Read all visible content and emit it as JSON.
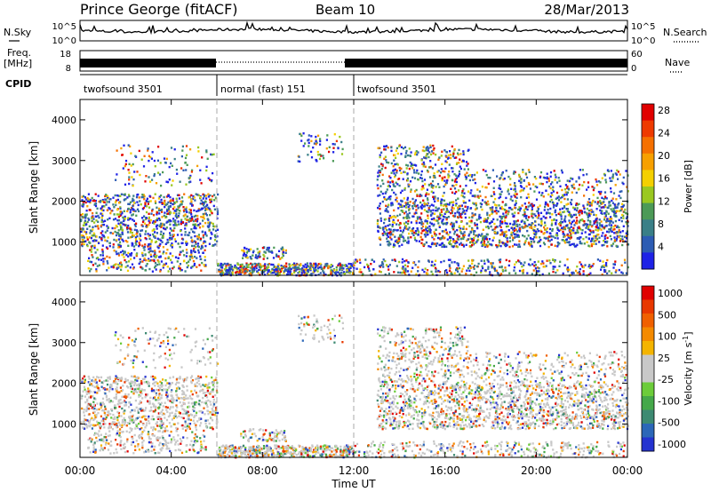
{
  "header": {
    "station": "Prince George (fitACF)",
    "beam": "Beam 10",
    "date": "28/Mar/2013"
  },
  "left_labels": {
    "nsky": "N.Sky",
    "freq": "Freq.",
    "freq_unit": "[MHz]",
    "cpid": "CPID"
  },
  "right_labels": {
    "nsearch": "N.Search",
    "nave": "Nave"
  },
  "noise_axis": {
    "left_ticks": [
      "10^5",
      "10^0"
    ],
    "right_ticks": [
      "10^5",
      "10^0"
    ]
  },
  "freq_axis": {
    "left_ticks": [
      "18",
      "8"
    ],
    "right_ticks": [
      "60",
      "0"
    ]
  },
  "cpid_segments": [
    {
      "label": "twofsound 3501",
      "start_h": 0,
      "end_h": 6
    },
    {
      "label": "normal (fast) 151",
      "start_h": 6,
      "end_h": 12
    },
    {
      "label": "twofsound 3501",
      "start_h": 12,
      "end_h": 24
    }
  ],
  "chart_data": [
    {
      "type": "heatmap",
      "name": "power-panel",
      "ylabel": "Slant Range [km]",
      "yticks": [
        "1000",
        "2000",
        "3000",
        "4000"
      ],
      "ylim": [
        180,
        4500
      ],
      "colorbar": {
        "label": "Power [dB]",
        "ticks": [
          "4",
          "8",
          "12",
          "16",
          "20",
          "24",
          "28"
        ],
        "colors": [
          "#1e22e6",
          "#2d5cb3",
          "#3a7f87",
          "#4c9a57",
          "#9ac820",
          "#f4d000",
          "#f7a000",
          "#f57000",
          "#ee3a00",
          "#e00000"
        ]
      }
    },
    {
      "type": "heatmap",
      "name": "velocity-panel",
      "ylabel": "Slant Range [km]",
      "yticks": [
        "1000",
        "2000",
        "3000",
        "4000"
      ],
      "ylim": [
        180,
        4500
      ],
      "colorbar": {
        "label": "Velocity",
        "label_unit": "[m s",
        "label_exp": "-1",
        "label_end": "]",
        "ticks": [
          "1000",
          "500",
          "100",
          "25",
          "-25",
          "-100",
          "-500",
          "-1000"
        ],
        "colors": [
          "#2433d0",
          "#2c67b8",
          "#3d8a72",
          "#45a84a",
          "#6ccc3a",
          "#c8c8c8",
          "#c8c8c8",
          "#f4b400",
          "#f48a00",
          "#f06000",
          "#e83800",
          "#e00000"
        ]
      }
    }
  ],
  "time_axis": {
    "label": "Time UT",
    "ticks": [
      "00:00",
      "04:00",
      "08:00",
      "12:00",
      "16:00",
      "20:00",
      "00:00"
    ],
    "tick_hours": [
      0,
      4,
      8,
      12,
      16,
      20,
      24
    ]
  }
}
